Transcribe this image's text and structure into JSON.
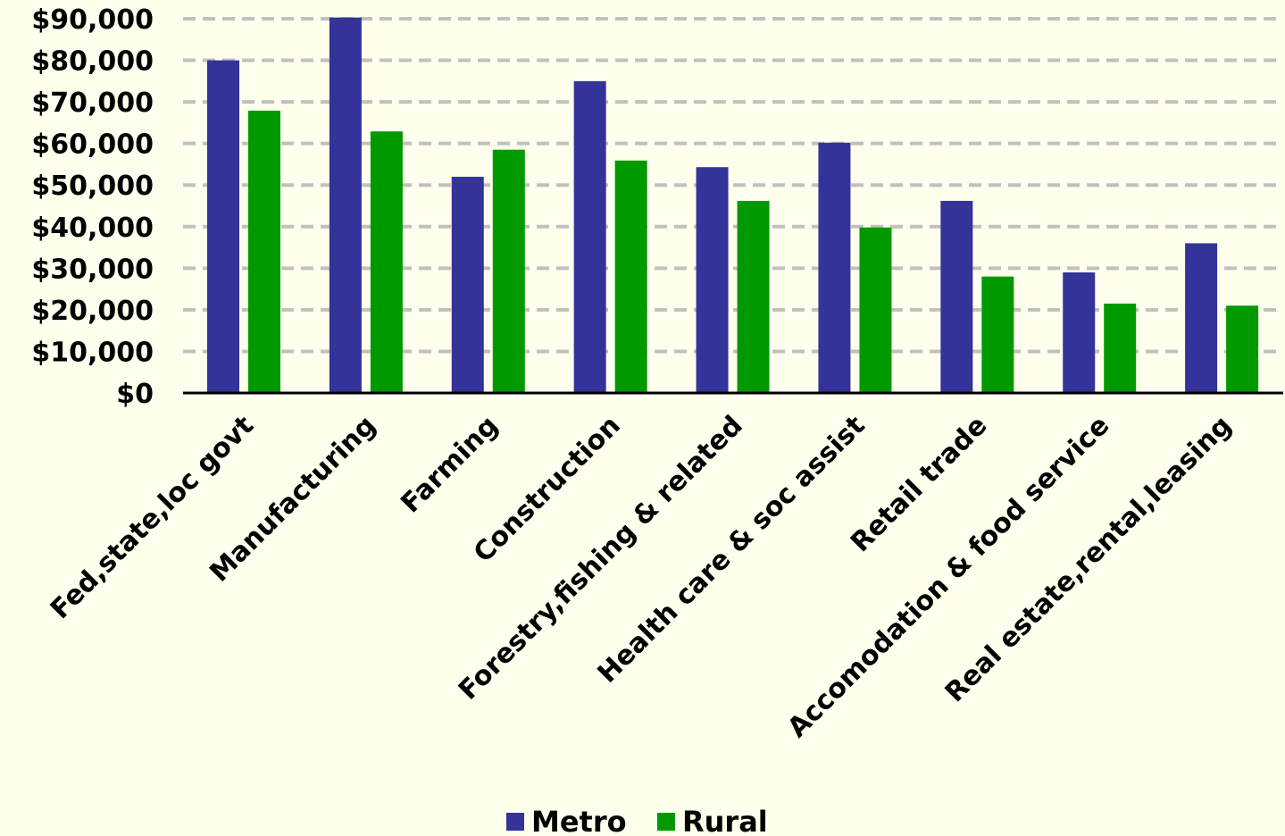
{
  "colors": {
    "background": "#FFFFEE",
    "metro": "#333399",
    "rural": "#009900",
    "grid": "#C0C0C0",
    "axis": "#000000"
  },
  "chart_data": {
    "type": "bar",
    "title": "",
    "xlabel": "",
    "ylabel": "",
    "ylim": [
      0,
      90000
    ],
    "y_ticks": [
      0,
      10000,
      20000,
      30000,
      40000,
      50000,
      60000,
      70000,
      80000,
      90000
    ],
    "y_tick_labels": [
      "$0",
      "$10,000",
      "$20,000",
      "$30,000",
      "$40,000",
      "$50,000",
      "$60,000",
      "$70,000",
      "$80,000",
      "$90,000"
    ],
    "grid": true,
    "legend_position": "bottom",
    "categories": [
      "Fed,state,loc govt",
      "Manufacturing",
      "Farming",
      "Construction",
      "Forestry,fishing & related",
      "Health care & soc assist",
      "Retail trade",
      "Accomodation & food service",
      "Real estate,rental,leasing"
    ],
    "series": [
      {
        "name": "Metro",
        "color": "#333399",
        "values": [
          80000,
          90300,
          52000,
          75000,
          54300,
          60200,
          46200,
          29000,
          36000
        ]
      },
      {
        "name": "Rural",
        "color": "#009900",
        "values": [
          67900,
          62900,
          58500,
          55900,
          46200,
          39800,
          28000,
          21500,
          21000
        ]
      }
    ]
  }
}
